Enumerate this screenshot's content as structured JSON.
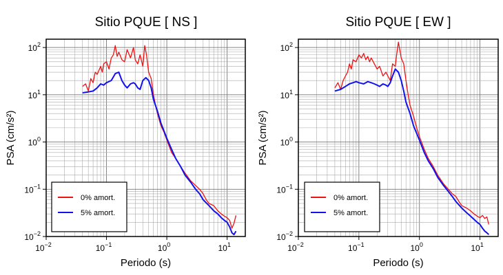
{
  "chart_data": [
    {
      "type": "line",
      "title": "Sitio PQUE [ NS ]",
      "xlabel": "Periodo (s)",
      "ylabel": "PSA (cm/s²)",
      "xscale": "log",
      "yscale": "log",
      "xlim": [
        0.01,
        20
      ],
      "ylim": [
        0.01,
        150
      ],
      "x_tick_labels": [
        [
          "10",
          "−2"
        ],
        [
          "10",
          "−1"
        ],
        [
          "10",
          "0"
        ],
        [
          "10",
          "1"
        ]
      ],
      "y_tick_labels": [
        [
          "10",
          "−2"
        ],
        [
          "10",
          "−1"
        ],
        [
          "10",
          "0"
        ],
        [
          "10",
          "1"
        ],
        [
          "10",
          "2"
        ]
      ],
      "grid": true,
      "legend_position": "bottom-left",
      "series": [
        {
          "name": "0% amort.",
          "color": "#ee1111",
          "x": [
            0.04,
            0.045,
            0.05,
            0.055,
            0.06,
            0.065,
            0.07,
            0.075,
            0.08,
            0.085,
            0.09,
            0.1,
            0.11,
            0.12,
            0.13,
            0.14,
            0.15,
            0.16,
            0.18,
            0.2,
            0.22,
            0.25,
            0.28,
            0.3,
            0.33,
            0.36,
            0.4,
            0.43,
            0.46,
            0.5,
            0.55,
            0.6,
            0.65,
            0.7,
            0.8,
            0.9,
            1.0,
            1.2,
            1.4,
            1.7,
            2.0,
            2.5,
            3.0,
            3.5,
            4.0,
            4.5,
            5.0,
            6.0,
            7.0,
            8.0,
            9.0,
            10.0,
            11.0,
            12.0,
            13.0,
            14.0
          ],
          "values": [
            15,
            17,
            12,
            22,
            18,
            30,
            27,
            33,
            40,
            30,
            45,
            50,
            35,
            60,
            70,
            110,
            65,
            80,
            55,
            50,
            90,
            60,
            100,
            55,
            45,
            70,
            40,
            110,
            70,
            30,
            22,
            10,
            6.0,
            4.0,
            2.2,
            1.6,
            1.1,
            0.6,
            0.45,
            0.3,
            0.22,
            0.15,
            0.12,
            0.1,
            0.08,
            0.06,
            0.05,
            0.045,
            0.035,
            0.03,
            0.027,
            0.025,
            0.022,
            0.015,
            0.019,
            0.028
          ]
        },
        {
          "name": "5% amort.",
          "color": "#1111ee",
          "x": [
            0.04,
            0.05,
            0.06,
            0.07,
            0.08,
            0.09,
            0.1,
            0.12,
            0.14,
            0.16,
            0.18,
            0.2,
            0.22,
            0.25,
            0.28,
            0.3,
            0.33,
            0.36,
            0.4,
            0.45,
            0.5,
            0.55,
            0.6,
            0.7,
            0.8,
            1.0,
            1.2,
            1.4,
            1.7,
            2.0,
            2.5,
            3.0,
            3.5,
            4.0,
            5.0,
            6.0,
            7.0,
            8.0,
            9.0,
            10.0,
            11.0,
            12.0,
            13.0,
            14.0
          ],
          "values": [
            11,
            11.5,
            12,
            14,
            17,
            16,
            18,
            20,
            28,
            30,
            20,
            16,
            14,
            17,
            18,
            17,
            14,
            13,
            20,
            23,
            20,
            14,
            8.0,
            4.5,
            2.5,
            1.2,
            0.7,
            0.45,
            0.3,
            0.2,
            0.14,
            0.1,
            0.08,
            0.06,
            0.045,
            0.035,
            0.03,
            0.025,
            0.022,
            0.02,
            0.016,
            0.012,
            0.011,
            0.013
          ]
        }
      ]
    },
    {
      "type": "line",
      "title": "Sitio PQUE [ EW ]",
      "xlabel": "Periodo (s)",
      "ylabel": "PSA (cm/s²)",
      "xscale": "log",
      "yscale": "log",
      "xlim": [
        0.01,
        20
      ],
      "ylim": [
        0.01,
        150
      ],
      "x_tick_labels": [
        [
          "10",
          "−2"
        ],
        [
          "10",
          "−1"
        ],
        [
          "10",
          "0"
        ],
        [
          "10",
          "1"
        ]
      ],
      "y_tick_labels": [
        [
          "10",
          "−2"
        ],
        [
          "10",
          "−1"
        ],
        [
          "10",
          "0"
        ],
        [
          "10",
          "1"
        ],
        [
          "10",
          "2"
        ]
      ],
      "grid": true,
      "legend_position": "bottom-left",
      "series": [
        {
          "name": "0% amort.",
          "color": "#ee1111",
          "x": [
            0.04,
            0.045,
            0.05,
            0.055,
            0.06,
            0.065,
            0.07,
            0.075,
            0.08,
            0.09,
            0.1,
            0.11,
            0.12,
            0.13,
            0.14,
            0.15,
            0.16,
            0.18,
            0.2,
            0.22,
            0.25,
            0.28,
            0.3,
            0.33,
            0.36,
            0.4,
            0.42,
            0.45,
            0.5,
            0.55,
            0.6,
            0.65,
            0.7,
            0.8,
            0.9,
            1.0,
            1.2,
            1.4,
            1.7,
            2.0,
            2.5,
            3.0,
            3.5,
            4.0,
            4.5,
            5.0,
            6.0,
            7.0,
            8.0,
            9.0,
            10.0,
            11.0,
            12.0,
            13.0,
            14.0
          ],
          "values": [
            14,
            18,
            13,
            20,
            25,
            30,
            45,
            35,
            55,
            50,
            70,
            60,
            75,
            55,
            65,
            50,
            60,
            45,
            35,
            40,
            25,
            30,
            25,
            20,
            45,
            40,
            70,
            130,
            60,
            45,
            20,
            10,
            6.0,
            3.5,
            2.0,
            1.3,
            0.7,
            0.45,
            0.3,
            0.2,
            0.13,
            0.1,
            0.08,
            0.07,
            0.055,
            0.045,
            0.04,
            0.035,
            0.03,
            0.027,
            0.025,
            0.028,
            0.024,
            0.026,
            0.018
          ]
        },
        {
          "name": "5% amort.",
          "color": "#1111ee",
          "x": [
            0.04,
            0.05,
            0.06,
            0.07,
            0.08,
            0.09,
            0.1,
            0.12,
            0.14,
            0.16,
            0.18,
            0.2,
            0.22,
            0.25,
            0.28,
            0.3,
            0.33,
            0.36,
            0.4,
            0.45,
            0.5,
            0.55,
            0.6,
            0.7,
            0.8,
            1.0,
            1.2,
            1.4,
            1.7,
            2.0,
            2.5,
            3.0,
            3.5,
            4.0,
            5.0,
            6.0,
            7.0,
            8.0,
            9.0,
            10.0,
            11.0,
            12.0,
            13.0,
            14.0
          ],
          "values": [
            12,
            13,
            15,
            17,
            18,
            19,
            18,
            17,
            19,
            18,
            17,
            16,
            15,
            17,
            16,
            15,
            18,
            25,
            35,
            30,
            20,
            12,
            7.0,
            4.0,
            2.2,
            1.1,
            0.6,
            0.4,
            0.27,
            0.18,
            0.12,
            0.09,
            0.07,
            0.055,
            0.04,
            0.032,
            0.027,
            0.023,
            0.02,
            0.018,
            0.015,
            0.013,
            0.012,
            0.011
          ]
        }
      ]
    }
  ]
}
